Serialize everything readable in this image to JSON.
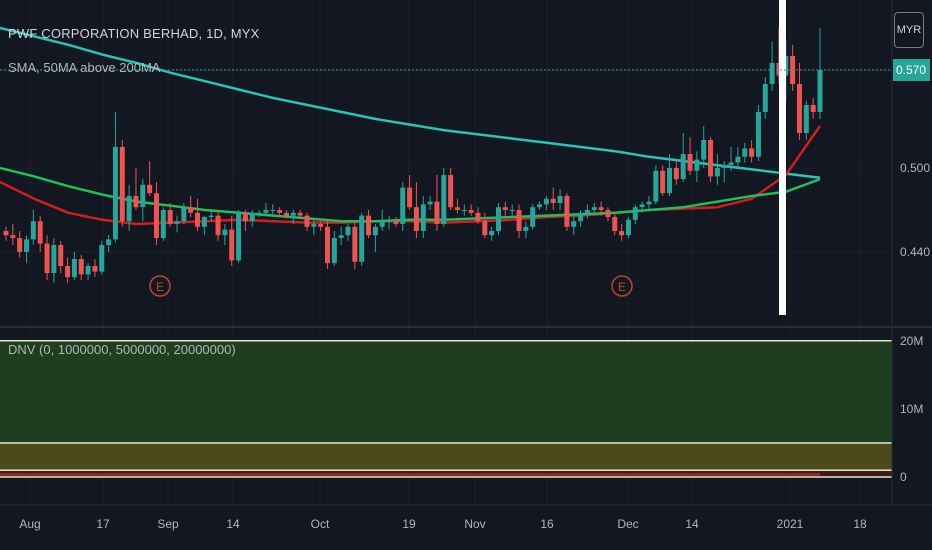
{
  "header": {
    "title": "PWF CORPORATION BERHAD, 1D, MYX",
    "indicator": "SMA, 50MA above 200MA",
    "currency": "MYR"
  },
  "lower_pane": {
    "title": "DNV (0, 1000000, 5000000, 20000000)"
  },
  "colors": {
    "background": "#131722",
    "up": "#26a69a",
    "down": "#ef5350",
    "ma50": "#d11f1f",
    "ma200_slow": "#26c6b4",
    "ma_green": "#1fbf5a",
    "earnings": "#c0452c",
    "highlight": "#ffffff",
    "zone_green": "#1f3d1f",
    "zone_yellow": "#4a4a1c"
  },
  "chart_data": [
    {
      "type": "candlestick",
      "title": "PWF CORPORATION BERHAD, 1D, MYX",
      "x_ticks": [
        "Aug",
        "17",
        "Sep",
        "14",
        "Oct",
        "19",
        "Nov",
        "16",
        "Dec",
        "14",
        "2021",
        "18"
      ],
      "y_ticks": [
        0.44,
        0.5,
        0.57
      ],
      "y_range": [
        0.395,
        0.62
      ],
      "last_price": "0.570",
      "earnings_markers": [
        "E",
        "E"
      ],
      "ohlc": [
        [
          0.455,
          0.458,
          0.448,
          0.452
        ],
        [
          0.452,
          0.46,
          0.445,
          0.45
        ],
        [
          0.45,
          0.455,
          0.436,
          0.44
        ],
        [
          0.44,
          0.452,
          0.432,
          0.449
        ],
        [
          0.449,
          0.47,
          0.445,
          0.462
        ],
        [
          0.462,
          0.466,
          0.44,
          0.446
        ],
        [
          0.446,
          0.452,
          0.42,
          0.425
        ],
        [
          0.425,
          0.45,
          0.418,
          0.445
        ],
        [
          0.445,
          0.448,
          0.425,
          0.43
        ],
        [
          0.43,
          0.436,
          0.418,
          0.422
        ],
        [
          0.422,
          0.44,
          0.42,
          0.435
        ],
        [
          0.435,
          0.438,
          0.42,
          0.424
        ],
        [
          0.424,
          0.432,
          0.42,
          0.43
        ],
        [
          0.43,
          0.435,
          0.422,
          0.426
        ],
        [
          0.426,
          0.448,
          0.424,
          0.445
        ],
        [
          0.445,
          0.452,
          0.44,
          0.449
        ],
        [
          0.449,
          0.54,
          0.447,
          0.515
        ],
        [
          0.515,
          0.52,
          0.458,
          0.462
        ],
        [
          0.462,
          0.488,
          0.455,
          0.48
        ],
        [
          0.48,
          0.5,
          0.47,
          0.472
        ],
        [
          0.472,
          0.492,
          0.462,
          0.488
        ],
        [
          0.488,
          0.505,
          0.48,
          0.482
        ],
        [
          0.482,
          0.49,
          0.445,
          0.45
        ],
        [
          0.45,
          0.472,
          0.448,
          0.47
        ],
        [
          0.47,
          0.475,
          0.458,
          0.46
        ],
        [
          0.46,
          0.466,
          0.454,
          0.462
        ],
        [
          0.462,
          0.475,
          0.46,
          0.472
        ],
        [
          0.472,
          0.48,
          0.465,
          0.468
        ],
        [
          0.468,
          0.478,
          0.455,
          0.458
        ],
        [
          0.458,
          0.466,
          0.452,
          0.465
        ],
        [
          0.465,
          0.47,
          0.462,
          0.466
        ],
        [
          0.466,
          0.47,
          0.448,
          0.452
        ],
        [
          0.452,
          0.46,
          0.445,
          0.456
        ],
        [
          0.456,
          0.466,
          0.43,
          0.434
        ],
        [
          0.434,
          0.47,
          0.432,
          0.468
        ],
        [
          0.468,
          0.47,
          0.455,
          0.462
        ],
        [
          0.462,
          0.47,
          0.458,
          0.468
        ],
        [
          0.468,
          0.47,
          0.465,
          0.468
        ],
        [
          0.468,
          0.475,
          0.466,
          0.47
        ],
        [
          0.47,
          0.474,
          0.466,
          0.47
        ],
        [
          0.47,
          0.472,
          0.466,
          0.468
        ],
        [
          0.468,
          0.47,
          0.464,
          0.466
        ],
        [
          0.466,
          0.47,
          0.46,
          0.468
        ],
        [
          0.468,
          0.47,
          0.464,
          0.466
        ],
        [
          0.466,
          0.468,
          0.455,
          0.458
        ],
        [
          0.458,
          0.464,
          0.452,
          0.46
        ],
        [
          0.46,
          0.462,
          0.455,
          0.458
        ],
        [
          0.458,
          0.462,
          0.428,
          0.432
        ],
        [
          0.432,
          0.455,
          0.43,
          0.45
        ],
        [
          0.45,
          0.458,
          0.445,
          0.452
        ],
        [
          0.452,
          0.46,
          0.448,
          0.458
        ],
        [
          0.458,
          0.462,
          0.428,
          0.433
        ],
        [
          0.433,
          0.468,
          0.43,
          0.466
        ],
        [
          0.466,
          0.47,
          0.45,
          0.452
        ],
        [
          0.452,
          0.46,
          0.44,
          0.458
        ],
        [
          0.458,
          0.47,
          0.455,
          0.462
        ],
        [
          0.462,
          0.466,
          0.456,
          0.462
        ],
        [
          0.462,
          0.465,
          0.458,
          0.46
        ],
        [
          0.46,
          0.49,
          0.455,
          0.486
        ],
        [
          0.486,
          0.495,
          0.47,
          0.472
        ],
        [
          0.472,
          0.49,
          0.45,
          0.455
        ],
        [
          0.455,
          0.48,
          0.45,
          0.474
        ],
        [
          0.474,
          0.48,
          0.47,
          0.476
        ],
        [
          0.476,
          0.495,
          0.455,
          0.46
        ],
        [
          0.46,
          0.5,
          0.458,
          0.495
        ],
        [
          0.495,
          0.5,
          0.47,
          0.472
        ],
        [
          0.472,
          0.478,
          0.468,
          0.47
        ],
        [
          0.47,
          0.474,
          0.466,
          0.47
        ],
        [
          0.47,
          0.474,
          0.466,
          0.468
        ],
        [
          0.468,
          0.472,
          0.46,
          0.462
        ],
        [
          0.462,
          0.468,
          0.45,
          0.452
        ],
        [
          0.452,
          0.458,
          0.448,
          0.455
        ],
        [
          0.455,
          0.475,
          0.452,
          0.472
        ],
        [
          0.472,
          0.476,
          0.466,
          0.47
        ],
        [
          0.47,
          0.474,
          0.466,
          0.47
        ],
        [
          0.47,
          0.474,
          0.45,
          0.455
        ],
        [
          0.455,
          0.462,
          0.45,
          0.458
        ],
        [
          0.458,
          0.474,
          0.456,
          0.472
        ],
        [
          0.472,
          0.476,
          0.47,
          0.474
        ],
        [
          0.474,
          0.48,
          0.47,
          0.478
        ],
        [
          0.478,
          0.486,
          0.47,
          0.475
        ],
        [
          0.475,
          0.485,
          0.47,
          0.48
        ],
        [
          0.48,
          0.482,
          0.455,
          0.458
        ],
        [
          0.458,
          0.466,
          0.452,
          0.462
        ],
        [
          0.462,
          0.47,
          0.458,
          0.468
        ],
        [
          0.468,
          0.474,
          0.464,
          0.47
        ],
        [
          0.47,
          0.475,
          0.466,
          0.472
        ],
        [
          0.472,
          0.476,
          0.466,
          0.47
        ],
        [
          0.47,
          0.472,
          0.462,
          0.465
        ],
        [
          0.465,
          0.468,
          0.452,
          0.455
        ],
        [
          0.455,
          0.46,
          0.448,
          0.452
        ],
        [
          0.452,
          0.465,
          0.45,
          0.463
        ],
        [
          0.463,
          0.474,
          0.46,
          0.472
        ],
        [
          0.472,
          0.476,
          0.468,
          0.474
        ],
        [
          0.474,
          0.48,
          0.47,
          0.476
        ],
        [
          0.476,
          0.502,
          0.474,
          0.498
        ],
        [
          0.498,
          0.502,
          0.48,
          0.482
        ],
        [
          0.482,
          0.51,
          0.48,
          0.5
        ],
        [
          0.5,
          0.505,
          0.488,
          0.492
        ],
        [
          0.492,
          0.525,
          0.49,
          0.51
        ],
        [
          0.51,
          0.522,
          0.495,
          0.498
        ],
        [
          0.498,
          0.512,
          0.49,
          0.506
        ],
        [
          0.506,
          0.53,
          0.5,
          0.52
        ],
        [
          0.52,
          0.522,
          0.49,
          0.494
        ],
        [
          0.494,
          0.51,
          0.488,
          0.5
        ],
        [
          0.5,
          0.505,
          0.49,
          0.502
        ],
        [
          0.502,
          0.515,
          0.498,
          0.504
        ],
        [
          0.504,
          0.515,
          0.5,
          0.508
        ],
        [
          0.508,
          0.518,
          0.504,
          0.514
        ],
        [
          0.514,
          0.52,
          0.504,
          0.508
        ],
        [
          0.508,
          0.545,
          0.505,
          0.54
        ],
        [
          0.54,
          0.565,
          0.535,
          0.56
        ],
        [
          0.56,
          0.59,
          0.555,
          0.575
        ],
        [
          0.575,
          0.6,
          0.56,
          0.566
        ],
        [
          0.566,
          0.592,
          0.548,
          0.58
        ],
        [
          0.58,
          0.588,
          0.555,
          0.56
        ],
        [
          0.56,
          0.575,
          0.52,
          0.525
        ],
        [
          0.525,
          0.548,
          0.52,
          0.545
        ],
        [
          0.545,
          0.55,
          0.535,
          0.54
        ],
        [
          0.54,
          0.6,
          0.535,
          0.57
        ]
      ],
      "series": [
        {
          "style": "teal slow MA",
          "values": [
            0.6,
            0.594,
            0.588,
            0.581,
            0.575,
            0.568,
            0.562,
            0.556,
            0.55,
            0.545,
            0.54,
            0.535,
            0.531,
            0.527,
            0.524,
            0.521,
            0.518,
            0.515,
            0.512,
            0.508,
            0.505,
            0.502,
            0.499,
            0.496,
            0.493
          ]
        },
        {
          "style": "red MA",
          "values": [
            0.49,
            0.478,
            0.468,
            0.463,
            0.46,
            0.461,
            0.462,
            0.463,
            0.462,
            0.461,
            0.461,
            0.462,
            0.462,
            0.461,
            0.462,
            0.463,
            0.465,
            0.466,
            0.468,
            0.47,
            0.471,
            0.472,
            0.478,
            0.495,
            0.53
          ]
        },
        {
          "style": "green MA",
          "values": [
            0.5,
            0.494,
            0.487,
            0.481,
            0.476,
            0.473,
            0.47,
            0.468,
            0.466,
            0.464,
            0.462,
            0.462,
            0.463,
            0.463,
            0.464,
            0.465,
            0.466,
            0.467,
            0.468,
            0.47,
            0.472,
            0.476,
            0.48,
            0.483,
            0.492
          ]
        }
      ]
    },
    {
      "type": "area",
      "title": "DNV (0, 1000000, 5000000, 20000000)",
      "y_ticks": [
        "20M",
        "10M",
        "0"
      ],
      "y_range": [
        0,
        21000000
      ],
      "zones": [
        {
          "from": 5000000,
          "to": 20000000,
          "color": "#1f3d1f"
        },
        {
          "from": 1000000,
          "to": 5000000,
          "color": "#4a4a1c"
        },
        {
          "from": 0,
          "to": 1000000,
          "color": "#3d1a1a"
        }
      ],
      "threshold_lines": [
        20000000,
        5000000,
        1000000,
        0
      ]
    }
  ]
}
